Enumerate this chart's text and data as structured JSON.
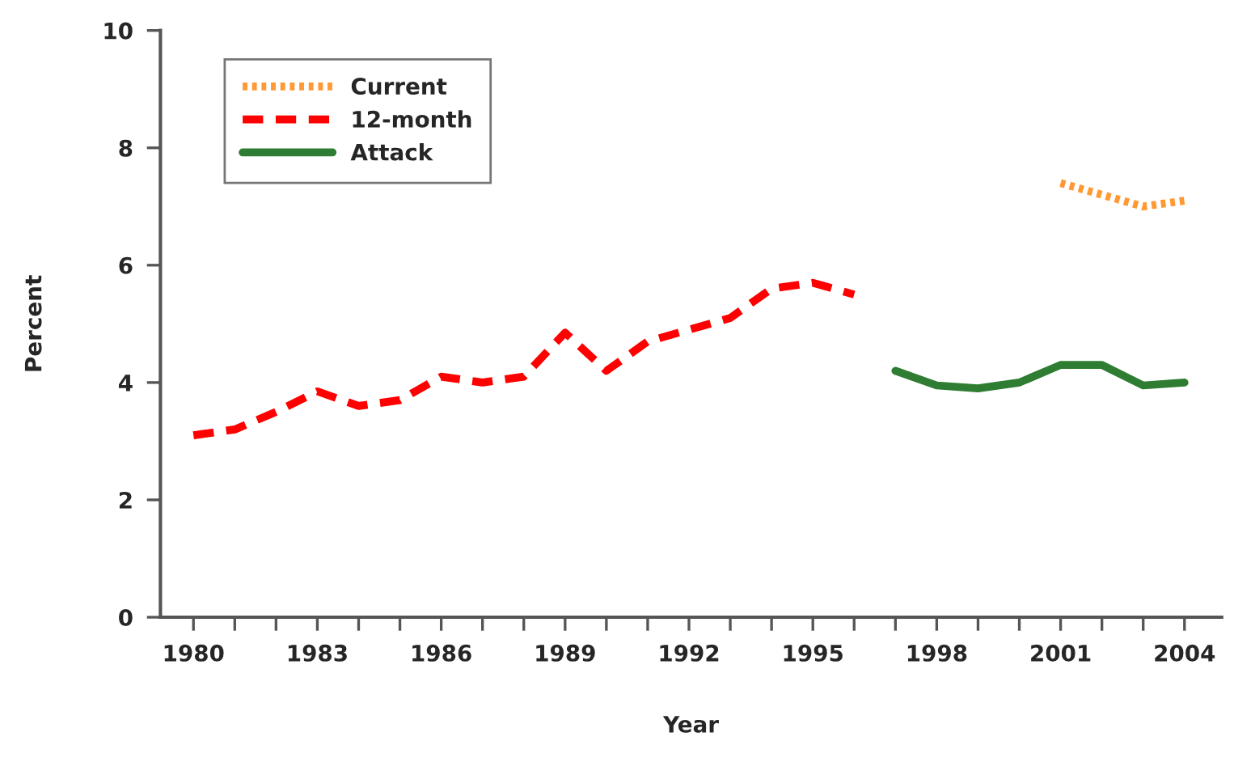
{
  "chart_data": {
    "type": "line",
    "xlabel": "Year",
    "ylabel": "Percent",
    "x": [
      1980,
      1981,
      1982,
      1983,
      1984,
      1985,
      1986,
      1987,
      1988,
      1989,
      1990,
      1991,
      1992,
      1993,
      1994,
      1995,
      1996,
      1997,
      1998,
      1999,
      2000,
      2001,
      2002,
      2003,
      2004
    ],
    "series": [
      {
        "name": "Current",
        "color": "#ff9933",
        "line_style": "dotted",
        "values": [
          null,
          null,
          null,
          null,
          null,
          null,
          null,
          null,
          null,
          null,
          null,
          null,
          null,
          null,
          null,
          null,
          null,
          null,
          null,
          null,
          null,
          7.4,
          7.2,
          7.0,
          7.1
        ]
      },
      {
        "name": "12-month",
        "color": "#ff0000",
        "line_style": "dashed",
        "values": [
          3.1,
          3.2,
          3.5,
          3.85,
          3.6,
          3.7,
          4.1,
          4.0,
          4.1,
          4.85,
          4.2,
          4.7,
          4.9,
          5.1,
          5.6,
          5.7,
          5.5,
          null,
          null,
          null,
          null,
          null,
          null,
          null,
          null
        ]
      },
      {
        "name": "Attack",
        "color": "#2e7d32",
        "line_style": "solid",
        "values": [
          null,
          null,
          null,
          null,
          null,
          null,
          null,
          null,
          null,
          null,
          null,
          null,
          null,
          null,
          null,
          null,
          null,
          4.2,
          3.95,
          3.9,
          4.0,
          4.3,
          4.3,
          3.95,
          4.0
        ]
      }
    ],
    "xlim": [
      1979.2,
      2004.9
    ],
    "xticks": [
      1980,
      {
        "value": 1981,
        "label": null
      },
      {
        "value": 1982,
        "label": null
      },
      1983,
      {
        "value": 1984,
        "label": null
      },
      {
        "value": 1985,
        "label": null
      },
      1986,
      {
        "value": 1987,
        "label": null
      },
      {
        "value": 1988,
        "label": null
      },
      1989,
      {
        "value": 1990,
        "label": null
      },
      {
        "value": 1991,
        "label": null
      },
      1992,
      {
        "value": 1993,
        "label": null
      },
      {
        "value": 1994,
        "label": null
      },
      1995,
      {
        "value": 1996,
        "label": null
      },
      {
        "value": 1997,
        "label": null
      },
      1998,
      {
        "value": 1999,
        "label": null
      },
      {
        "value": 2000,
        "label": null
      },
      2001,
      {
        "value": 2002,
        "label": null
      },
      {
        "value": 2003,
        "label": null
      },
      2004
    ],
    "ylim": [
      0,
      10
    ],
    "yticks": [
      0,
      2,
      4,
      6,
      8,
      10
    ],
    "grid": false,
    "legend": "top left",
    "marker": "none"
  }
}
